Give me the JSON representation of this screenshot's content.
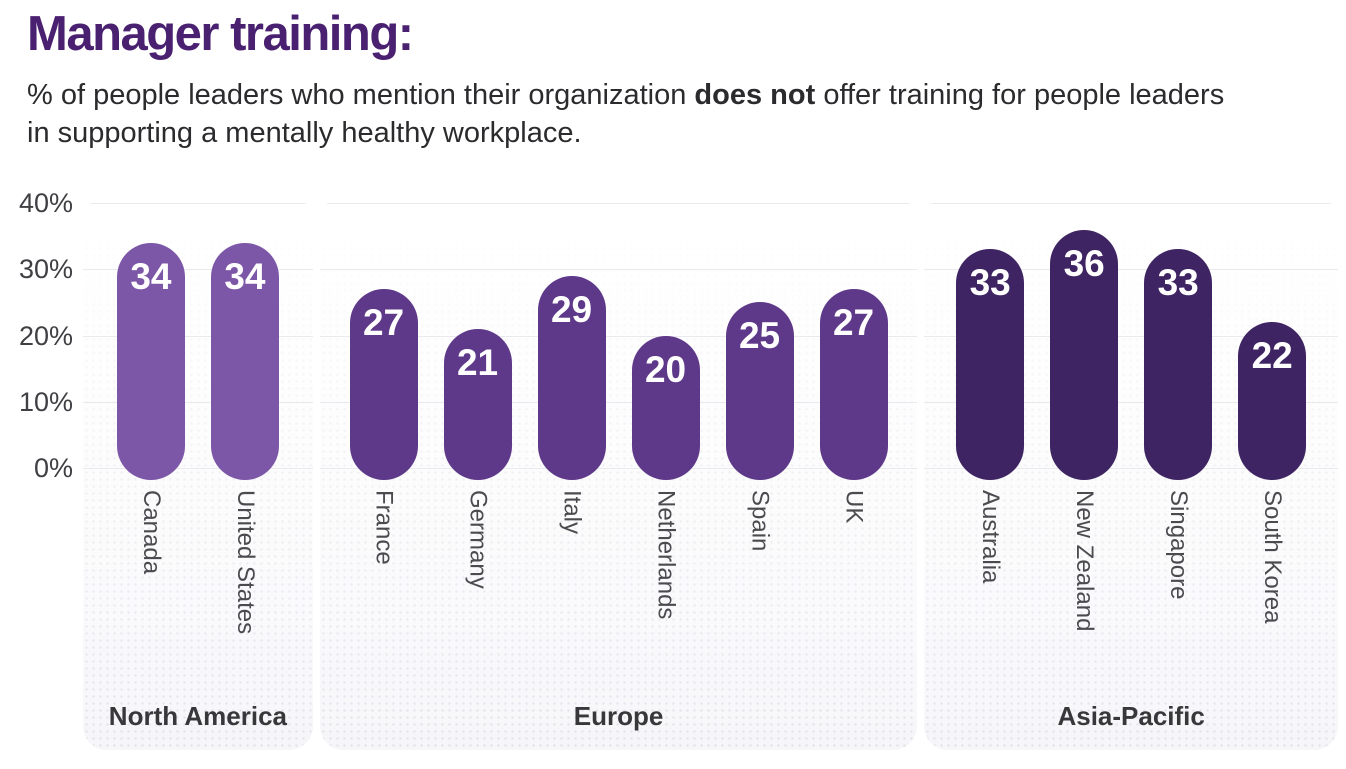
{
  "header": {
    "title": "Manager training:",
    "subtitle_prefix": "% of people leaders who mention their organization ",
    "subtitle_bold": "does not",
    "subtitle_suffix": " offer training for people leaders in supporting a mentally healthy workplace.",
    "title_color": "#4A2170",
    "subtitle_color": "#2B2B2E"
  },
  "chart_data": {
    "type": "bar",
    "title": "Manager training:",
    "subtitle": "% of people leaders who mention their organization does not offer training for people leaders in supporting a mentally healthy workplace.",
    "xlabel": "",
    "ylabel": "",
    "ylim": [
      0,
      40
    ],
    "ytick_labels": [
      "0%",
      "10%",
      "20%",
      "30%",
      "40%"
    ],
    "grid": "horizontal",
    "legend": "none",
    "bar_shape": "pill",
    "value_labels": "inside-top-white",
    "groups": [
      {
        "label": "North America",
        "bar_color": "#7C57A7",
        "categories": [
          "Canada",
          "United States"
        ],
        "values": [
          34,
          34
        ]
      },
      {
        "label": "Europe",
        "bar_color": "#5E3889",
        "categories": [
          "France",
          "Germany",
          "Italy",
          "Netherlands",
          "Spain",
          "UK"
        ],
        "values": [
          27,
          21,
          29,
          20,
          25,
          27
        ]
      },
      {
        "label": "Asia-Pacific",
        "bar_color": "#3E2462",
        "categories": [
          "Australia",
          "New Zealand",
          "Singapore",
          "South Korea"
        ],
        "values": [
          33,
          36,
          33,
          22
        ]
      }
    ],
    "colors": {
      "gridline": "#EAEAEE",
      "tick_text": "#3F3F44",
      "category_text": "#4B4B4F",
      "group_label_text": "#38383B",
      "panel_bg": "#F6F6F9"
    }
  }
}
